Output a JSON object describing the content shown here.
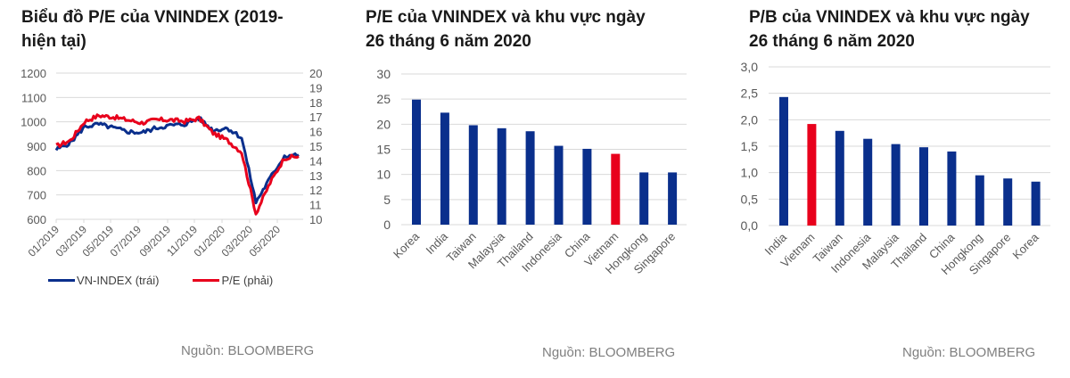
{
  "panels": [
    {
      "title_line1": "Biểu đồ P/E của VNINDEX (2019-",
      "title_line2": "hiện tại)",
      "source": "Nguồn: BLOOMBERG"
    },
    {
      "title_line1": "P/E của VNINDEX và khu vực ngày",
      "title_line2": "26 tháng 6 năm 2020",
      "source": "Nguồn: BLOOMBERG"
    },
    {
      "title_line1": "P/B của VNINDEX và khu vực ngày",
      "title_line2": "26 tháng 6 năm 2020",
      "source": "Nguồn: BLOOMBERG"
    }
  ],
  "colors": {
    "blue": "#0a2f8c",
    "red": "#e8001c",
    "grid": "#d9d9d9",
    "axis_text": "#595959"
  },
  "chart_data": [
    {
      "type": "line",
      "title": "Biểu đồ P/E của VNINDEX (2019-hiện tại)",
      "x_tick_labels": [
        "01/2019",
        "03/2019",
        "05/2019",
        "07/2019",
        "09/2019",
        "11/2019",
        "01/2020",
        "03/2020",
        "05/2020"
      ],
      "y_left": {
        "label": "VN-INDEX",
        "ticks": [
          "600",
          "700",
          "800",
          "900",
          "1000",
          "1100",
          "1200"
        ],
        "range": [
          600,
          1200
        ]
      },
      "y_right": {
        "label": "P/E",
        "ticks": [
          "10",
          "11",
          "12",
          "13",
          "14",
          "15",
          "16",
          "17",
          "18",
          "19",
          "20"
        ],
        "range": [
          10,
          20
        ]
      },
      "legend": [
        "VN-INDEX (trái)",
        "P/E (phải)"
      ],
      "legend_position": "bottom",
      "grid": true,
      "x": [
        "01/2019",
        "02/2019",
        "03/2019",
        "04/2019",
        "05/2019",
        "06/2019",
        "07/2019",
        "08/2019",
        "09/2019",
        "10/2019",
        "11/2019",
        "12/2019",
        "01/2020",
        "02/2020",
        "03/2020",
        "04/2020",
        "05/2020",
        "06/2020"
      ],
      "series": [
        {
          "name": "VN-INDEX (trái)",
          "axis": "left",
          "color": "#0a2f8c",
          "values": [
            885,
            915,
            980,
            990,
            975,
            960,
            955,
            975,
            985,
            990,
            1015,
            965,
            975,
            935,
            670,
            770,
            860,
            865
          ]
        },
        {
          "name": "P/E (phải)",
          "axis": "right",
          "color": "#e8001c",
          "values": [
            15.0,
            15.4,
            16.7,
            17.1,
            17.0,
            16.8,
            16.6,
            16.8,
            16.8,
            16.7,
            16.9,
            15.9,
            15.4,
            14.6,
            10.4,
            12.5,
            14.2,
            14.3
          ]
        }
      ]
    },
    {
      "type": "bar",
      "title": "P/E của VNINDEX và khu vực ngày 26 tháng 6 năm 2020",
      "categories": [
        "Korea",
        "India",
        "Taiwan",
        "Malaysia",
        "Thailand",
        "Indonesia",
        "China",
        "Vietnam",
        "Hongkong",
        "Singapore"
      ],
      "values": [
        24.9,
        22.3,
        19.8,
        19.2,
        18.6,
        15.7,
        15.1,
        14.1,
        10.4,
        10.4
      ],
      "highlight": "Vietnam",
      "y_ticks": [
        "0",
        "5",
        "10",
        "15",
        "20",
        "25",
        "30"
      ],
      "ylim": [
        0,
        30
      ],
      "xlabel": "",
      "ylabel": "",
      "grid": true
    },
    {
      "type": "bar",
      "title": "P/B của VNINDEX và khu vực ngày 26 tháng 6 năm 2020",
      "categories": [
        "India",
        "Vietnam",
        "Taiwan",
        "Indonesia",
        "Malaysia",
        "Thailand",
        "China",
        "Hongkong",
        "Singapore",
        "Korea"
      ],
      "values": [
        2.43,
        1.92,
        1.79,
        1.64,
        1.54,
        1.48,
        1.4,
        0.95,
        0.89,
        0.83
      ],
      "highlight": "Vietnam",
      "y_ticks": [
        "0,0",
        "0,5",
        "1,0",
        "1,5",
        "2,0",
        "2,5",
        "3,0"
      ],
      "ylim": [
        0,
        3.0
      ],
      "xlabel": "",
      "ylabel": "",
      "grid": true
    }
  ]
}
